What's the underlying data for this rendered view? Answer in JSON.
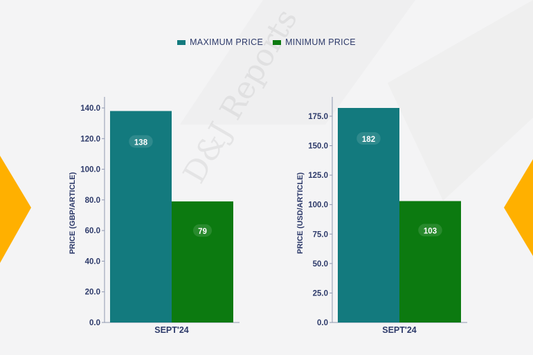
{
  "legend": [
    {
      "label": "MAXIMUM PRICE",
      "color": "#137a7e"
    },
    {
      "label": "MINIMUM PRICE",
      "color": "#0c7a10"
    }
  ],
  "watermark": "D&J Reports",
  "colors": {
    "accent": "#ffb000",
    "axis_text": "#2d3a6a"
  },
  "chart_data": [
    {
      "type": "bar",
      "categories": [
        "SEPT'24"
      ],
      "series": [
        {
          "name": "MAXIMUM PRICE",
          "values": [
            138
          ],
          "color": "#137a7e"
        },
        {
          "name": "MINIMUM PRICE",
          "values": [
            79
          ],
          "color": "#0c7a10"
        }
      ],
      "ylabel": "PRICE (GBP/ARTICLE)",
      "ylim": [
        0,
        140
      ],
      "yticks": [
        0,
        20,
        40,
        60,
        80,
        100,
        120,
        140
      ],
      "ytick_labels": [
        "0.0",
        "20.0",
        "40.0",
        "60.0",
        "80.0",
        "100.0",
        "120.0",
        "140.0"
      ],
      "data_labels": [
        "138",
        "79"
      ]
    },
    {
      "type": "bar",
      "categories": [
        "SEPT'24"
      ],
      "series": [
        {
          "name": "MAXIMUM PRICE",
          "values": [
            182
          ],
          "color": "#137a7e"
        },
        {
          "name": "MINIMUM PRICE",
          "values": [
            103
          ],
          "color": "#0c7a10"
        }
      ],
      "ylabel": "PRICE (USD/ARTICLE)",
      "ylim": [
        0,
        182
      ],
      "yticks": [
        0,
        25,
        50,
        75,
        100,
        125,
        150,
        175
      ],
      "ytick_labels": [
        "0.0",
        "25.0",
        "50.0",
        "75.0",
        "100.0",
        "125.0",
        "150.0",
        "175.0"
      ],
      "data_labels": [
        "182",
        "103"
      ]
    }
  ]
}
